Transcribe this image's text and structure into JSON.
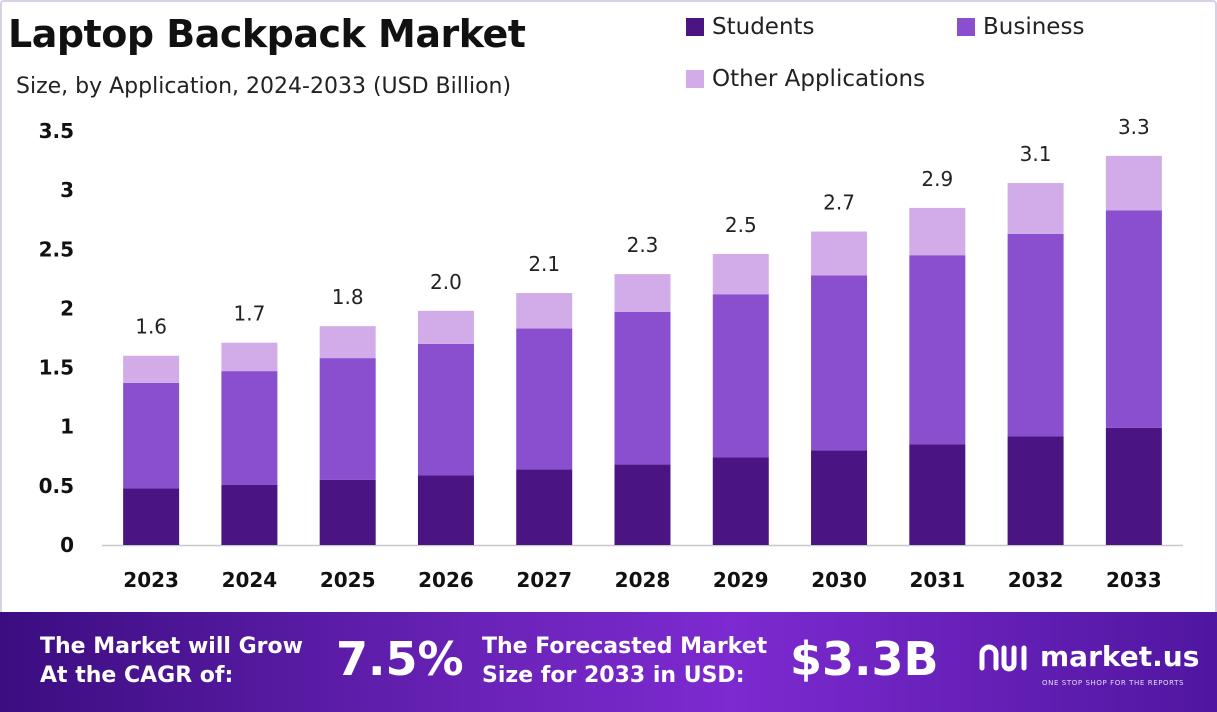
{
  "header": {
    "title": "Laptop Backpack Market",
    "subtitle": "Size, by Application, 2024-2033 (USD Billion)"
  },
  "legend": {
    "items": [
      {
        "label": "Students",
        "color": "#4a1483"
      },
      {
        "label": "Business",
        "color": "#8a4fcf"
      },
      {
        "label": "Other Applications",
        "color": "#d2ace9"
      }
    ]
  },
  "chart_data": {
    "type": "bar",
    "stacked": true,
    "categories": [
      "2023",
      "2024",
      "2025",
      "2026",
      "2027",
      "2028",
      "2029",
      "2030",
      "2031",
      "2032",
      "2033"
    ],
    "series": [
      {
        "name": "Students",
        "color": "#4a1483",
        "values": [
          0.48,
          0.51,
          0.55,
          0.59,
          0.64,
          0.68,
          0.74,
          0.8,
          0.85,
          0.92,
          0.99
        ]
      },
      {
        "name": "Business",
        "color": "#8a4fcf",
        "values": [
          0.89,
          0.96,
          1.03,
          1.11,
          1.19,
          1.29,
          1.38,
          1.48,
          1.6,
          1.71,
          1.84
        ]
      },
      {
        "name": "Other Applications",
        "color": "#d2ace9",
        "values": [
          0.23,
          0.24,
          0.27,
          0.28,
          0.3,
          0.32,
          0.34,
          0.37,
          0.4,
          0.43,
          0.46
        ]
      }
    ],
    "totals": [
      "1.6",
      "1.7",
      "1.8",
      "2.0",
      "2.1",
      "2.3",
      "2.5",
      "2.7",
      "2.9",
      "3.1",
      "3.3"
    ],
    "yticks": [
      "0",
      "0.5",
      "1",
      "1.5",
      "2",
      "2.5",
      "3",
      "3.5"
    ],
    "ylim": [
      0,
      3.5
    ],
    "grid": false,
    "legend_position": "top-right"
  },
  "footer": {
    "cagr_label_line1": "The Market will Grow",
    "cagr_label_line2": "At the CAGR of:",
    "cagr_value": "7.5%",
    "forecast_label_line1": "The Forecasted Market",
    "forecast_label_line2": "Size for 2033 in USD:",
    "forecast_value": "$3.3B",
    "brand_name": "market.us",
    "brand_tagline": "ONE STOP SHOP FOR THE REPORTS"
  }
}
